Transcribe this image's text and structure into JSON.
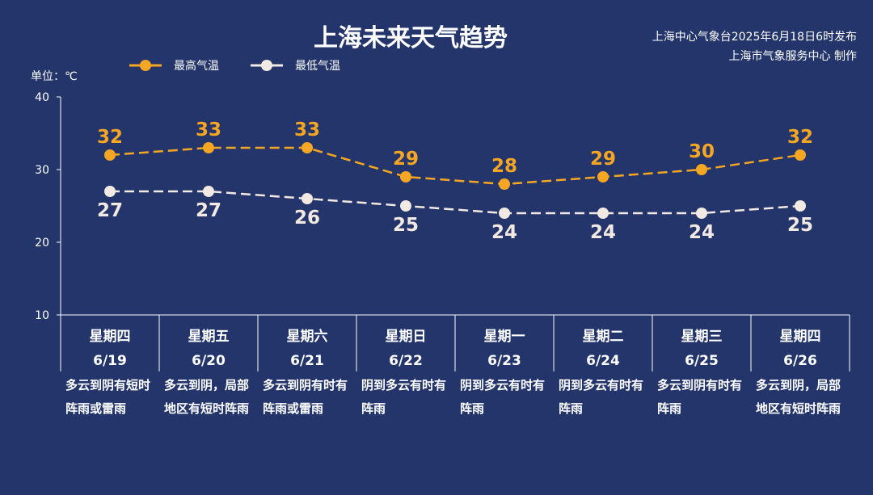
{
  "title": "上海未来天气趋势",
  "publisher": {
    "line1": "上海中心气象台2025年6月18日6时发布",
    "line2": "上海市气象服务中心 制作"
  },
  "unit_label": "单位：℃",
  "colors": {
    "background": "#23356a",
    "high": "#f5a623",
    "low": "#f3e9e3"
  },
  "chart_data": {
    "type": "line",
    "title": "上海未来天气趋势",
    "ylabel": "单位：℃",
    "ylim": [
      10,
      40
    ],
    "yticks": [
      10,
      20,
      30,
      40
    ],
    "legend_position": "top-left",
    "grid": false,
    "categories": [
      {
        "weekday": "星期四",
        "date": "6/19",
        "weather": "多云到阴有短时阵雨或雷雨"
      },
      {
        "weekday": "星期五",
        "date": "6/20",
        "weather": "多云到阴，局部地区有短时阵雨"
      },
      {
        "weekday": "星期六",
        "date": "6/21",
        "weather": "多云到阴有时有阵雨或雷雨"
      },
      {
        "weekday": "星期日",
        "date": "6/22",
        "weather": "阴到多云有时有阵雨"
      },
      {
        "weekday": "星期一",
        "date": "6/23",
        "weather": "阴到多云有时有阵雨"
      },
      {
        "weekday": "星期二",
        "date": "6/24",
        "weather": "阴到多云有时有阵雨"
      },
      {
        "weekday": "星期三",
        "date": "6/25",
        "weather": "多云到阴有时有阵雨"
      },
      {
        "weekday": "星期四",
        "date": "6/26",
        "weather": "多云到阴，局部地区有短时阵雨"
      }
    ],
    "series": [
      {
        "name": "最高气温",
        "values": [
          32,
          33,
          33,
          29,
          28,
          29,
          30,
          32
        ]
      },
      {
        "name": "最低气温",
        "values": [
          27,
          27,
          26,
          25,
          24,
          24,
          24,
          25
        ]
      }
    ]
  }
}
